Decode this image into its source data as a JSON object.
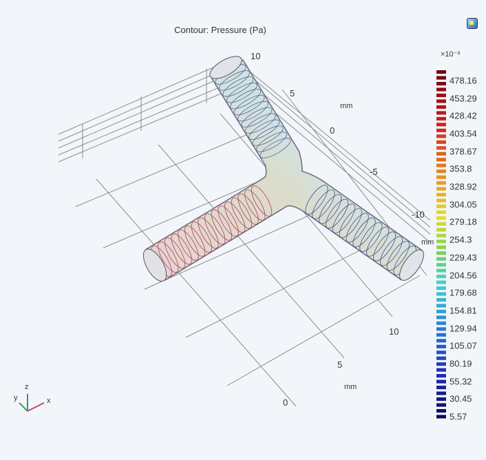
{
  "title": "Contour: Pressure (Pa)",
  "toolbar": {
    "export_icon": "image-export-icon"
  },
  "axes": {
    "y_ticks": [
      "10",
      "5",
      "0",
      "-5",
      "-10"
    ],
    "y_unit": "mm",
    "x_ticks": [
      "10",
      "5",
      "0"
    ],
    "x_unit": "mm",
    "z_unit": "mm"
  },
  "triad": {
    "x": "x",
    "y": "y",
    "z": "z"
  },
  "chart_data": {
    "type": "contour",
    "title": "Contour: Pressure (Pa)",
    "colorbar": {
      "multiplier": "×10⁻³",
      "ticks": [
        "478.16",
        "453.29",
        "428.42",
        "403.54",
        "378.67",
        "353.8",
        "328.92",
        "304.05",
        "279.18",
        "254.3",
        "229.43",
        "204.56",
        "179.68",
        "154.81",
        "129.94",
        "105.07",
        "80.19",
        "55.32",
        "30.45",
        "5.57"
      ],
      "range": [
        5.57,
        478.16
      ],
      "colormap": "rainbow",
      "top_color": "#7a0010",
      "bottom_color": "#0a0a60"
    },
    "grid": true
  }
}
